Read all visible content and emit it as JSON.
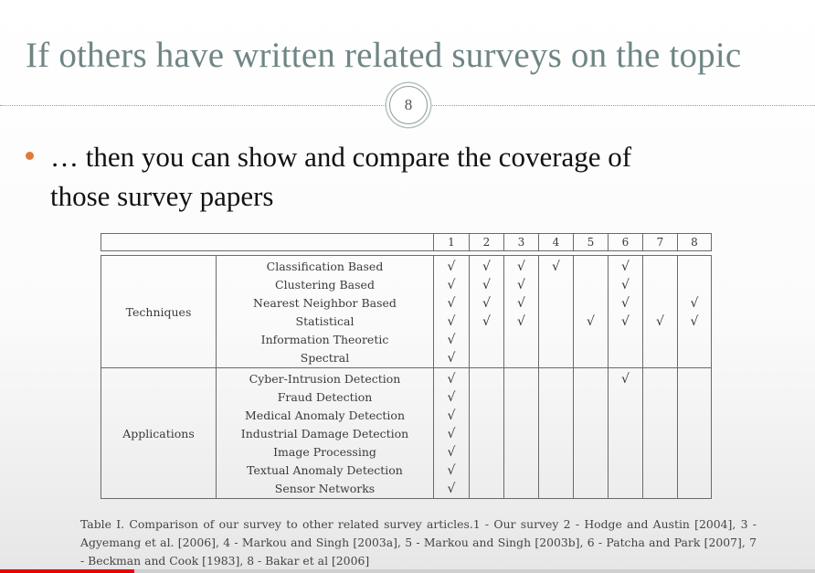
{
  "slide": {
    "title": "If others have written related surveys on the topic",
    "page_number": "8",
    "bullet": {
      "line1": "… then you can show and compare the coverage of",
      "line2": "those survey papers"
    }
  },
  "table": {
    "columns": [
      "1",
      "2",
      "3",
      "4",
      "5",
      "6",
      "7",
      "8"
    ],
    "check_symbol": "√",
    "groups": [
      {
        "label": "Techniques",
        "rows": [
          {
            "label": "Classification Based",
            "checks": [
              1,
              2,
              3,
              4,
              6
            ]
          },
          {
            "label": "Clustering Based",
            "checks": [
              1,
              2,
              3,
              6
            ]
          },
          {
            "label": "Nearest Neighbor Based",
            "checks": [
              1,
              2,
              3,
              6,
              8
            ]
          },
          {
            "label": "Statistical",
            "checks": [
              1,
              2,
              3,
              5,
              6,
              7,
              8
            ]
          },
          {
            "label": "Information Theoretic",
            "checks": [
              1
            ]
          },
          {
            "label": "Spectral",
            "checks": [
              1
            ]
          }
        ]
      },
      {
        "label": "Applications",
        "rows": [
          {
            "label": "Cyber-Intrusion Detection",
            "checks": [
              1,
              6
            ]
          },
          {
            "label": "Fraud Detection",
            "checks": [
              1
            ]
          },
          {
            "label": "Medical Anomaly Detection",
            "checks": [
              1
            ]
          },
          {
            "label": "Industrial Damage Detection",
            "checks": [
              1
            ]
          },
          {
            "label": "Image Processing",
            "checks": [
              1
            ]
          },
          {
            "label": "Textual Anomaly Detection",
            "checks": [
              1
            ]
          },
          {
            "label": "Sensor Networks",
            "checks": [
              1
            ]
          }
        ]
      }
    ],
    "caption": "Table I. Comparison of our survey to other related survey articles.1 - Our survey 2 - Hodge and Austin [2004], 3 - Agyemang et al. [2006], 4 - Markou and Singh [2003a], 5 - Markou and Singh [2003b], 6 - Patcha and Park [2007], 7 - Beckman and Cook [1983], 8 - Bakar et al [2006]"
  },
  "video_progress": 0.165,
  "colors": {
    "title": "#6f8585",
    "bullet": "#e07a3a",
    "progress": "#ee0000"
  }
}
